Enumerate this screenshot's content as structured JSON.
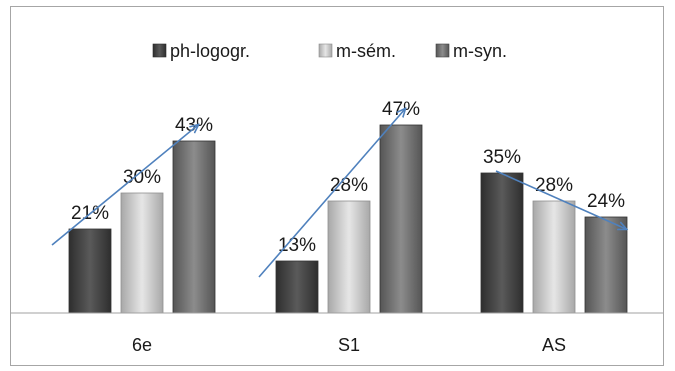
{
  "chart_data": {
    "type": "bar",
    "categories": [
      "6e",
      "S1",
      "AS"
    ],
    "series": [
      {
        "name": "ph-logogr.",
        "values": [
          21,
          13,
          35
        ],
        "color": "#4a4a4a"
      },
      {
        "name": "m-sém.",
        "values": [
          30,
          28,
          28
        ],
        "color": "#c9c9c9"
      },
      {
        "name": "m-syn.",
        "values": [
          43,
          47,
          24
        ],
        "color": "#7a7a7a"
      }
    ],
    "data_labels": [
      [
        "21%",
        "30%",
        "43%"
      ],
      [
        "13%",
        "28%",
        "47%"
      ],
      [
        "35%",
        "28%",
        "24%"
      ]
    ],
    "ylim": [
      0,
      60
    ],
    "legend_position": "top",
    "grid": false,
    "trend_arrow_color": "#4f81bd"
  }
}
